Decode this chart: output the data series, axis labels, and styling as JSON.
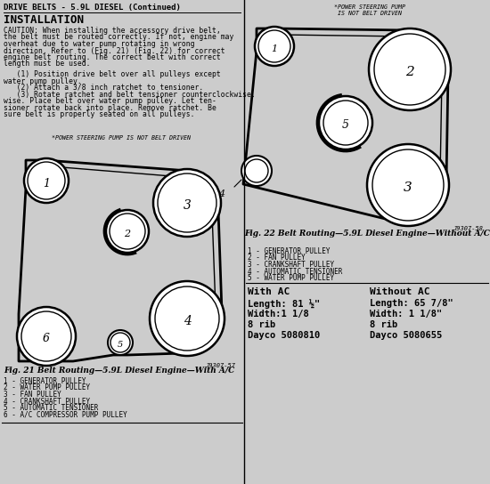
{
  "title": "DRIVE BELTS - 5.9L DIESEL (Continued)",
  "subtitle": "INSTALLATION",
  "bg_color": "#c8c8c8",
  "caution_lines": [
    "CAUTION: When installing the accessory drive belt,",
    "the belt must be routed correctly. If not, engine may",
    "overheat due to water pump rotating in wrong",
    "direction. Refer to (Fig. 21) (Fig. 22) for correct",
    "engine belt routing. The correct belt with correct",
    "length must be used."
  ],
  "steps_lines": [
    "   (1) Position drive belt over all pulleys except",
    "water pump pulley.",
    "   (2) Attach a 3/8 inch ratchet to tensioner.",
    "   (3) Rotate ratchet and belt tensioner counterclockwise.",
    "wise. Place belt over water pump pulley. Let ten-",
    "sioner rotate back into place. Remove ratchet. Be",
    "sure belt is properly seated on all pulleys."
  ],
  "ps_note_left": "*POWER STEERING PUMP IS NOT BELT DRIVEN",
  "ps_note_right": "*POWER STEERING PUMP\nIS NOT BELT DRIVEN",
  "fig21_caption": "Fig. 21 Belt Routing—5.9L Diesel Engine—With A/C",
  "fig21_legend": [
    "1 - GENERATOR PULLEY",
    "2 - WATER PUMP PULLEY",
    "3 - FAN PULLEY",
    "4 - CRANKSHAFT PULLEY",
    "5 - AUTOMATIC TENSIONER",
    "6 - A/C COMPRESSOR PUMP PULLEY"
  ],
  "fig21_code": "J9307-57",
  "fig22_caption": "Fig. 22 Belt Routing—5.9L Diesel Engine—Without A/C",
  "fig22_legend": [
    "1 - GENERATOR PULLEY",
    "2 - FAN PULLEY",
    "3 - CRANKSHAFT PULLEY",
    "4 - AUTOMATIC TENSIONER",
    "5 - WATER PUMP PULLEY"
  ],
  "fig22_code": "J9307-58",
  "with_ac_header": "With AC",
  "with_ac_lines": [
    "Length: 81 ½\"",
    "Width:1 1/8",
    "8 rib",
    "Dayco 5080810"
  ],
  "without_ac_header": "Without AC",
  "without_ac_lines": [
    "Length: 65 7/8\"",
    "Width: 1 1/8\"",
    "8 rib",
    "Dayco 5080655"
  ]
}
